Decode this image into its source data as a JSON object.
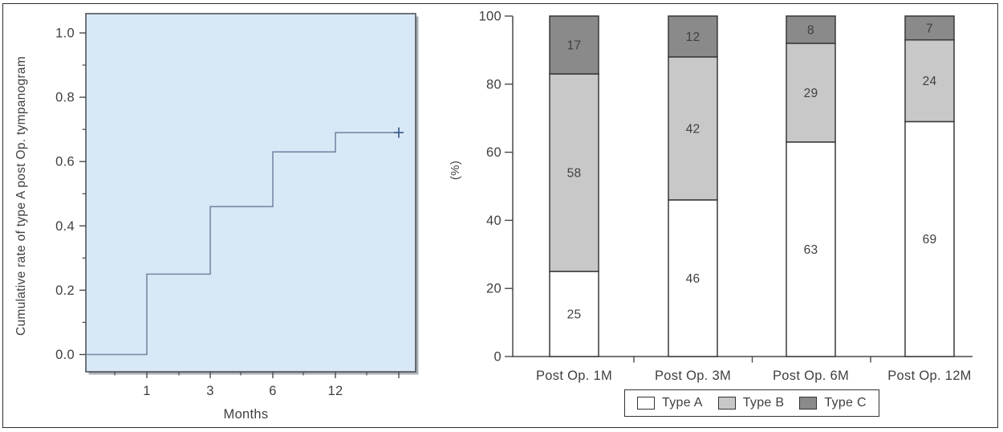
{
  "colors": {
    "plot_background": "#d9e8f6",
    "step_line": "#7589a6",
    "censor_mark": "#3c5c8f",
    "axis": "#46494d",
    "text": "#3f3f3f",
    "bar_border": "#383838",
    "type_a": "#ffffff",
    "type_b": "#c8c8c8",
    "type_c": "#8a8a8a"
  },
  "chart_data": [
    {
      "type": "line",
      "subtype": "step",
      "title": "",
      "xlabel": "Months",
      "ylabel": "Cumulative rate of type A post Op. tympanogram",
      "xticks": [
        "1",
        "3",
        "6",
        "12"
      ],
      "yticks": [
        "0.0",
        "0.2",
        "0.4",
        "0.6",
        "0.8",
        "1.0"
      ],
      "ylim": [
        0,
        1.05
      ],
      "grid": false,
      "points": [
        {
          "x": 0,
          "y": 0.0
        },
        {
          "x": 1,
          "y": 0.25
        },
        {
          "x": 3,
          "y": 0.46
        },
        {
          "x": 6,
          "y": 0.63
        },
        {
          "x": 12,
          "y": 0.69
        }
      ],
      "censored_end": {
        "y": 0.69,
        "symbol": "+"
      }
    },
    {
      "type": "bar",
      "stacked": true,
      "title": "",
      "xlabel": "",
      "ylabel": "(%)",
      "yticks": [
        "0",
        "20",
        "40",
        "60",
        "80",
        "100"
      ],
      "ylim": [
        0,
        100
      ],
      "grid": false,
      "legend_position": "bottom",
      "categories": [
        "Post Op. 1M",
        "Post Op. 3M",
        "Post Op. 6M",
        "Post Op. 12M"
      ],
      "series": [
        {
          "name": "Type A",
          "color": "#ffffff",
          "values": [
            25,
            46,
            63,
            69
          ]
        },
        {
          "name": "Type B",
          "color": "#c8c8c8",
          "values": [
            58,
            42,
            29,
            24
          ]
        },
        {
          "name": "Type C",
          "color": "#8a8a8a",
          "values": [
            17,
            12,
            8,
            7
          ]
        }
      ]
    }
  ]
}
